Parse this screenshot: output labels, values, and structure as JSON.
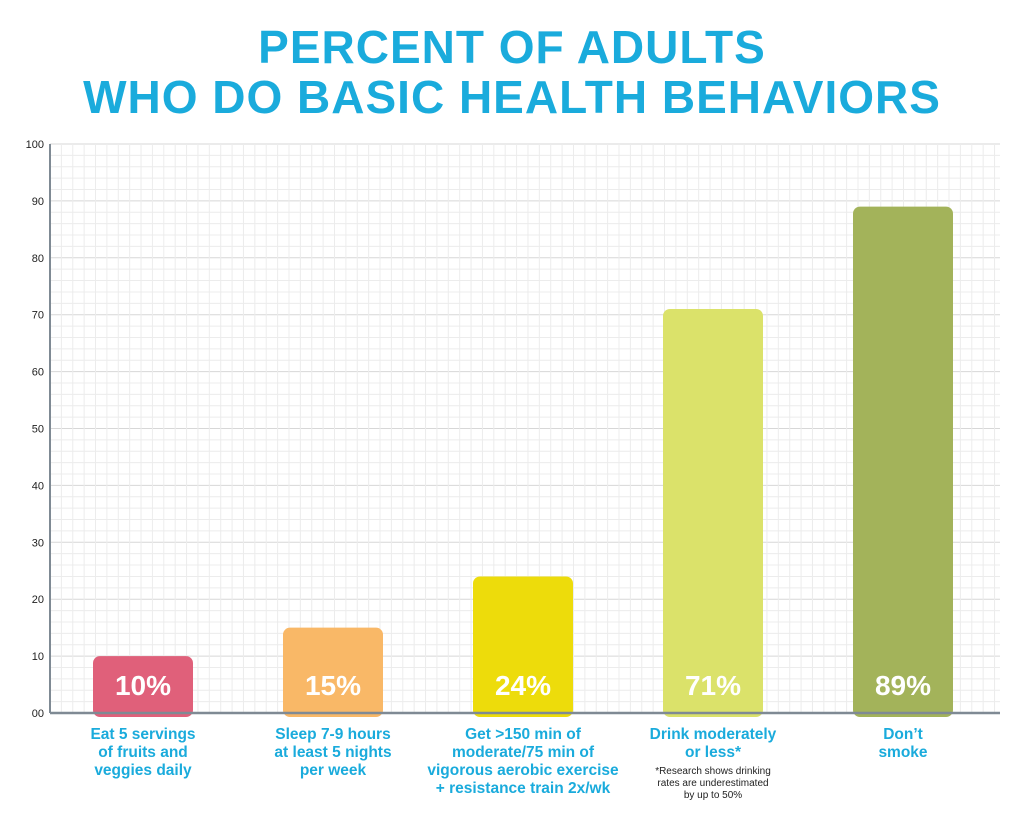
{
  "title": {
    "line1": "PERCENT OF ADULTS",
    "line2": "WHO DO BASIC HEALTH BEHAVIORS"
  },
  "chart_data": {
    "type": "bar",
    "categories": [
      [
        "Eat 5 servings",
        "of fruits and",
        "veggies daily"
      ],
      [
        "Sleep 7-9 hours",
        "at least 5 nights",
        "per week"
      ],
      [
        "Get >150 min of",
        "moderate/75 min of",
        "vigorous aerobic exercise",
        "+ resistance train 2x/wk"
      ],
      [
        "Drink moderately",
        "or less*"
      ],
      [
        "Don’t",
        "smoke"
      ]
    ],
    "values": [
      10,
      15,
      24,
      71,
      89
    ],
    "data_labels": [
      "10%",
      "15%",
      "24%",
      "71%",
      "89%"
    ],
    "bar_colors": [
      "#e0607a",
      "#f9b867",
      "#eddc0b",
      "#dbe26a",
      "#a3b35a"
    ],
    "ylim": [
      0,
      100
    ],
    "yticks": [
      "00",
      "10",
      "20",
      "30",
      "40",
      "50",
      "60",
      "70",
      "80",
      "90",
      "100"
    ],
    "grid": true,
    "footnote": [
      "*Research shows drinking",
      "rates are underestimated",
      "by up to 50%"
    ]
  }
}
